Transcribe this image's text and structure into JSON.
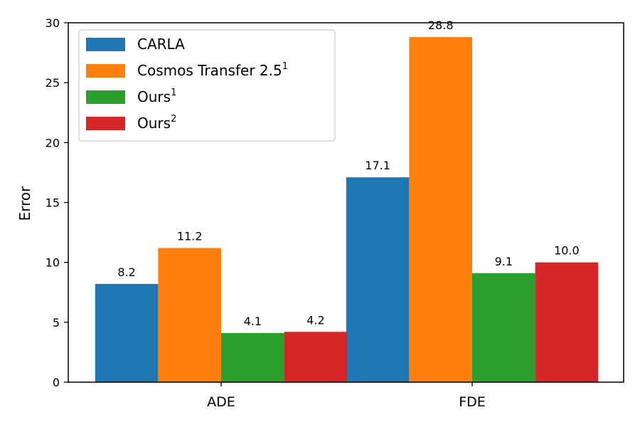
{
  "chart_data": {
    "type": "bar",
    "title": "",
    "xlabel": "",
    "ylabel": "Error",
    "categories": [
      "ADE",
      "FDE"
    ],
    "ylim": [
      0,
      30
    ],
    "yticks": [
      0,
      5,
      10,
      15,
      20,
      25,
      30
    ],
    "grid": false,
    "legend_position": "top-left",
    "series": [
      {
        "name": "CARLA",
        "sup": "",
        "color": "#1f77b4",
        "values": [
          8.2,
          17.1
        ],
        "labels": [
          "8.2",
          "17.1"
        ]
      },
      {
        "name": "Cosmos Transfer 2.5",
        "sup": "1",
        "color": "#ff7f0e",
        "values": [
          11.2,
          28.8
        ],
        "labels": [
          "11.2",
          "28.8"
        ]
      },
      {
        "name": "Ours",
        "sup": "1",
        "color": "#2ca02c",
        "values": [
          4.1,
          9.1
        ],
        "labels": [
          "4.1",
          "9.1"
        ]
      },
      {
        "name": "Ours",
        "sup": "2",
        "color": "#d62728",
        "values": [
          4.2,
          10.0
        ],
        "labels": [
          "4.2",
          "10.0"
        ]
      }
    ]
  }
}
